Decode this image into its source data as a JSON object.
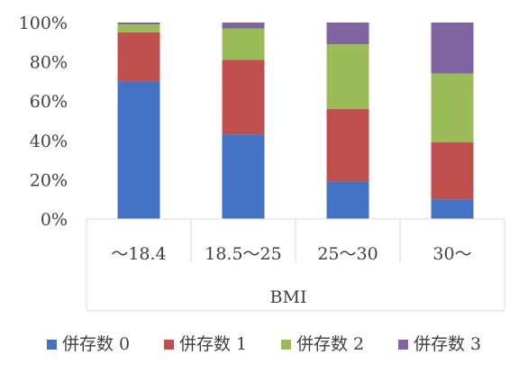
{
  "chart_data": {
    "type": "bar",
    "stacked": "percent",
    "xlabel": "BMI",
    "ylabel": "",
    "title": "",
    "categories": [
      "～18.4",
      "18.5～25",
      "25～30",
      "30～"
    ],
    "series": [
      {
        "name": "併存数 0",
        "color": "#4472C4",
        "values": [
          70,
          43,
          19,
          10
        ]
      },
      {
        "name": "併存数 1",
        "color": "#C0504D",
        "values": [
          25,
          38,
          37,
          29
        ]
      },
      {
        "name": "併存数 2",
        "color": "#9BBB59",
        "values": [
          4,
          16,
          33,
          35
        ]
      },
      {
        "name": "併存数 3",
        "color": "#8064A2",
        "values": [
          1,
          3,
          11,
          26
        ]
      }
    ],
    "ylim": [
      0,
      100
    ],
    "yticks": [
      "0%",
      "20%",
      "40%",
      "60%",
      "80%",
      "100%"
    ],
    "grid": false,
    "legend_position": "bottom"
  }
}
